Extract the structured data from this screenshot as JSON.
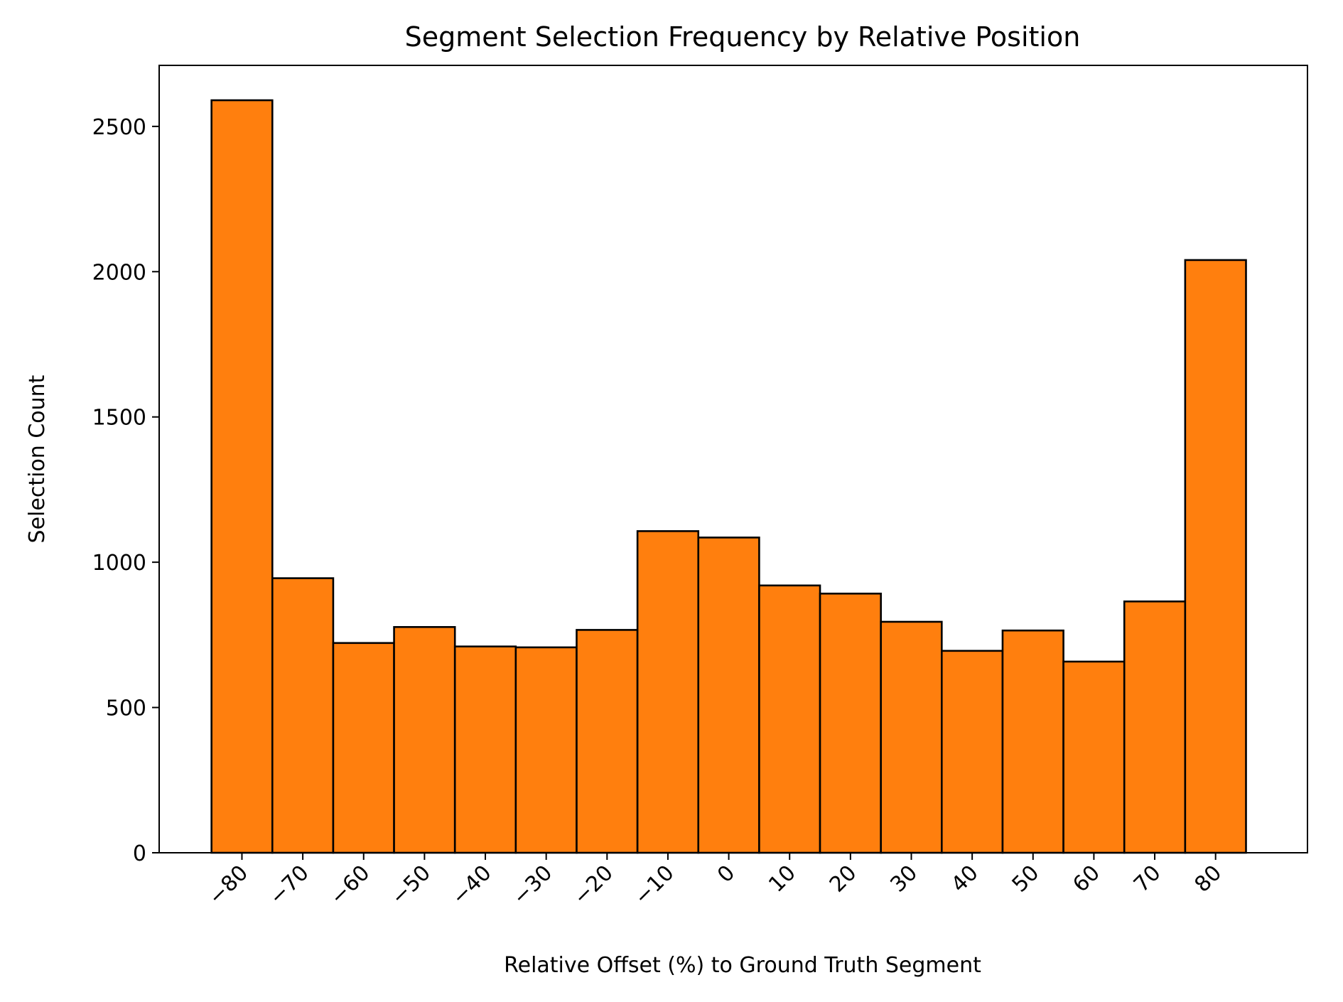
{
  "chart_data": {
    "type": "bar",
    "title": "Segment Selection Frequency by Relative Position",
    "xlabel": "Relative Offset (%) to Ground Truth Segment",
    "ylabel": "Selection Count",
    "categories": [
      -80,
      -70,
      -60,
      -50,
      -40,
      -30,
      -20,
      -10,
      0,
      10,
      20,
      30,
      40,
      50,
      60,
      70,
      80
    ],
    "tick_labels": [
      "−80",
      "−70",
      "−60",
      "−50",
      "−40",
      "−30",
      "−20",
      "−10",
      "0",
      "10",
      "20",
      "30",
      "40",
      "50",
      "60",
      "70",
      "80"
    ],
    "values": [
      2590,
      945,
      722,
      777,
      710,
      707,
      767,
      1107,
      1085,
      920,
      892,
      795,
      695,
      765,
      658,
      865,
      2040
    ],
    "bin_width": 10,
    "xlim": [
      -93.6,
      95.1
    ],
    "ylim": [
      0,
      2710
    ],
    "yticks": [
      0,
      500,
      1000,
      1500,
      2000,
      2500
    ],
    "bar_color": "#ff7f0e",
    "edge_color": "#000000",
    "grid": false,
    "legend": "none"
  }
}
